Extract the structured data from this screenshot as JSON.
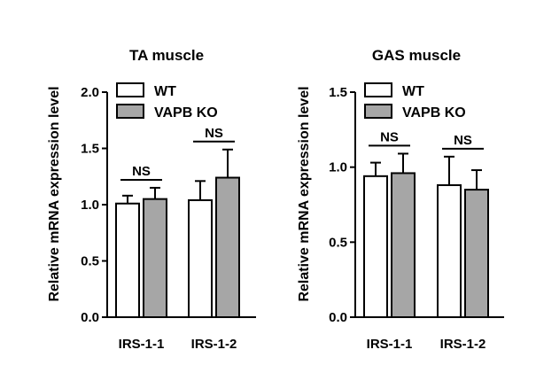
{
  "chart_data": [
    {
      "type": "bar",
      "title": "TA muscle",
      "xlabel": "",
      "ylabel": "Relative mRNA expression level",
      "ylim": [
        0,
        2.0
      ],
      "yticks": [
        "0.0",
        "0.5",
        "1.0",
        "1.5",
        "2.0"
      ],
      "categories": [
        "IRS-1-1",
        "IRS-1-2"
      ],
      "series": [
        {
          "name": "WT",
          "color": "#ffffff",
          "values": [
            1.01,
            1.04
          ],
          "errors": [
            0.07,
            0.17
          ]
        },
        {
          "name": "VAPB KO",
          "color": "#a6a6a6",
          "values": [
            1.05,
            1.24
          ],
          "errors": [
            0.1,
            0.25
          ]
        }
      ],
      "annotations": [
        "NS",
        "NS"
      ],
      "legend": "top-left"
    },
    {
      "type": "bar",
      "title": "GAS muscle",
      "xlabel": "",
      "ylabel": "Relative mRNA expression level",
      "ylim": [
        0,
        1.5
      ],
      "yticks": [
        "0.0",
        "0.5",
        "1.0",
        "1.5"
      ],
      "categories": [
        "IRS-1-1",
        "IRS-1-2"
      ],
      "series": [
        {
          "name": "WT",
          "color": "#ffffff",
          "values": [
            0.94,
            0.88
          ],
          "errors": [
            0.09,
            0.19
          ]
        },
        {
          "name": "VAPB KO",
          "color": "#a6a6a6",
          "values": [
            0.96,
            0.85
          ],
          "errors": [
            0.13,
            0.13
          ]
        }
      ],
      "annotations": [
        "NS",
        "NS"
      ],
      "legend": "top-left"
    }
  ]
}
